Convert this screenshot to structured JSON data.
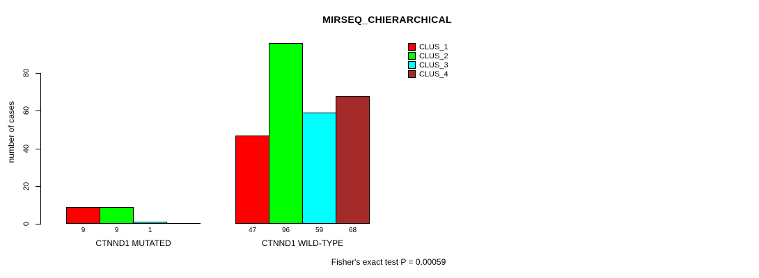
{
  "chart_data": {
    "type": "bar",
    "title": "MIRSEQ_CHIERARCHICAL",
    "ylabel": "number of cases",
    "xlabel": "",
    "yticks": [
      0,
      20,
      40,
      60,
      80
    ],
    "ylim": [
      0,
      100
    ],
    "grid": false,
    "categories": [
      "CTNND1 MUTATED",
      "CTNND1 WILD-TYPE"
    ],
    "series": [
      {
        "name": "CLUS_1",
        "color": "#ff0000",
        "values": [
          9,
          47
        ]
      },
      {
        "name": "CLUS_2",
        "color": "#00ff00",
        "values": [
          9,
          96
        ]
      },
      {
        "name": "CLUS_3",
        "color": "#00ffff",
        "values": [
          1,
          59
        ]
      },
      {
        "name": "CLUS_4",
        "color": "#a52a2a",
        "values": [
          0,
          68
        ]
      }
    ],
    "bar_value_labels": [
      [
        "9",
        "9",
        "1",
        ""
      ],
      [
        "47",
        "96",
        "59",
        "68"
      ]
    ],
    "legend": {
      "position": "top-right",
      "entries": [
        {
          "label": "CLUS_1",
          "color": "#ff0000"
        },
        {
          "label": "CLUS_2",
          "color": "#00ff00"
        },
        {
          "label": "CLUS_3",
          "color": "#00ffff"
        },
        {
          "label": "CLUS_4",
          "color": "#a52a2a"
        }
      ]
    },
    "annotation": "Fisher's exact test P = 0.00059"
  }
}
